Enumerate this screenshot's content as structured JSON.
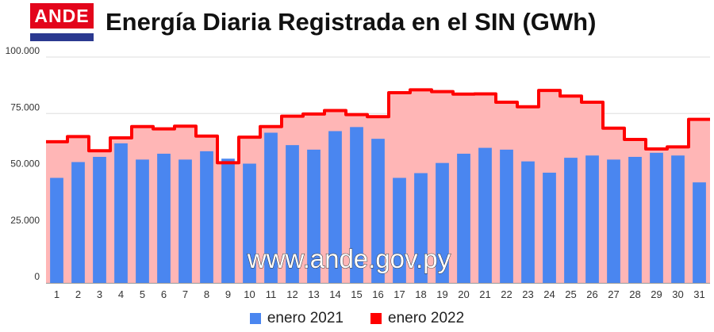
{
  "logo": {
    "text": "ANDE"
  },
  "chart_data": {
    "type": "bar+area",
    "title": "Energía Diaria Registrada en el SIN (GWh)",
    "watermark": "www.ande.gov.py",
    "categories": [
      "1",
      "2",
      "3",
      "4",
      "5",
      "6",
      "7",
      "8",
      "9",
      "10",
      "11",
      "12",
      "13",
      "14",
      "15",
      "16",
      "17",
      "18",
      "19",
      "20",
      "21",
      "22",
      "23",
      "24",
      "25",
      "26",
      "27",
      "28",
      "29",
      "30",
      "31"
    ],
    "ylim": [
      0,
      100000
    ],
    "yticks": [
      0,
      25000,
      50000,
      75000,
      100000
    ],
    "ytick_labels": [
      "0",
      "25.000",
      "50.000",
      "75.000",
      "100.000"
    ],
    "grid": true,
    "legend_position": "bottom",
    "series": [
      {
        "name": "enero 2021",
        "type": "bar",
        "color": "#4a86f0",
        "values": [
          46500,
          53500,
          55800,
          61800,
          54600,
          57200,
          54600,
          58300,
          55000,
          52800,
          66500,
          61000,
          59000,
          67200,
          69000,
          63800,
          46500,
          48600,
          53100,
          57200,
          59800,
          59000,
          53800,
          48800,
          55400,
          56400,
          54600,
          55800,
          57600,
          56400,
          44500
        ]
      },
      {
        "name": "enero 2022",
        "type": "step-area",
        "color": "#ff0000",
        "fill": "#ffb6b6",
        "values": [
          62500,
          64800,
          58500,
          64200,
          69200,
          68200,
          69400,
          65000,
          53200,
          64500,
          69200,
          73800,
          74800,
          76300,
          74500,
          73600,
          84200,
          85500,
          84700,
          83600,
          83700,
          80000,
          78000,
          85200,
          82700,
          80000,
          68500,
          63500,
          59300,
          60200,
          72400
        ]
      }
    ]
  },
  "legend": [
    {
      "label": "enero 2021",
      "color": "#4a86f0"
    },
    {
      "label": "enero 2022",
      "color": "#ff0000"
    }
  ]
}
